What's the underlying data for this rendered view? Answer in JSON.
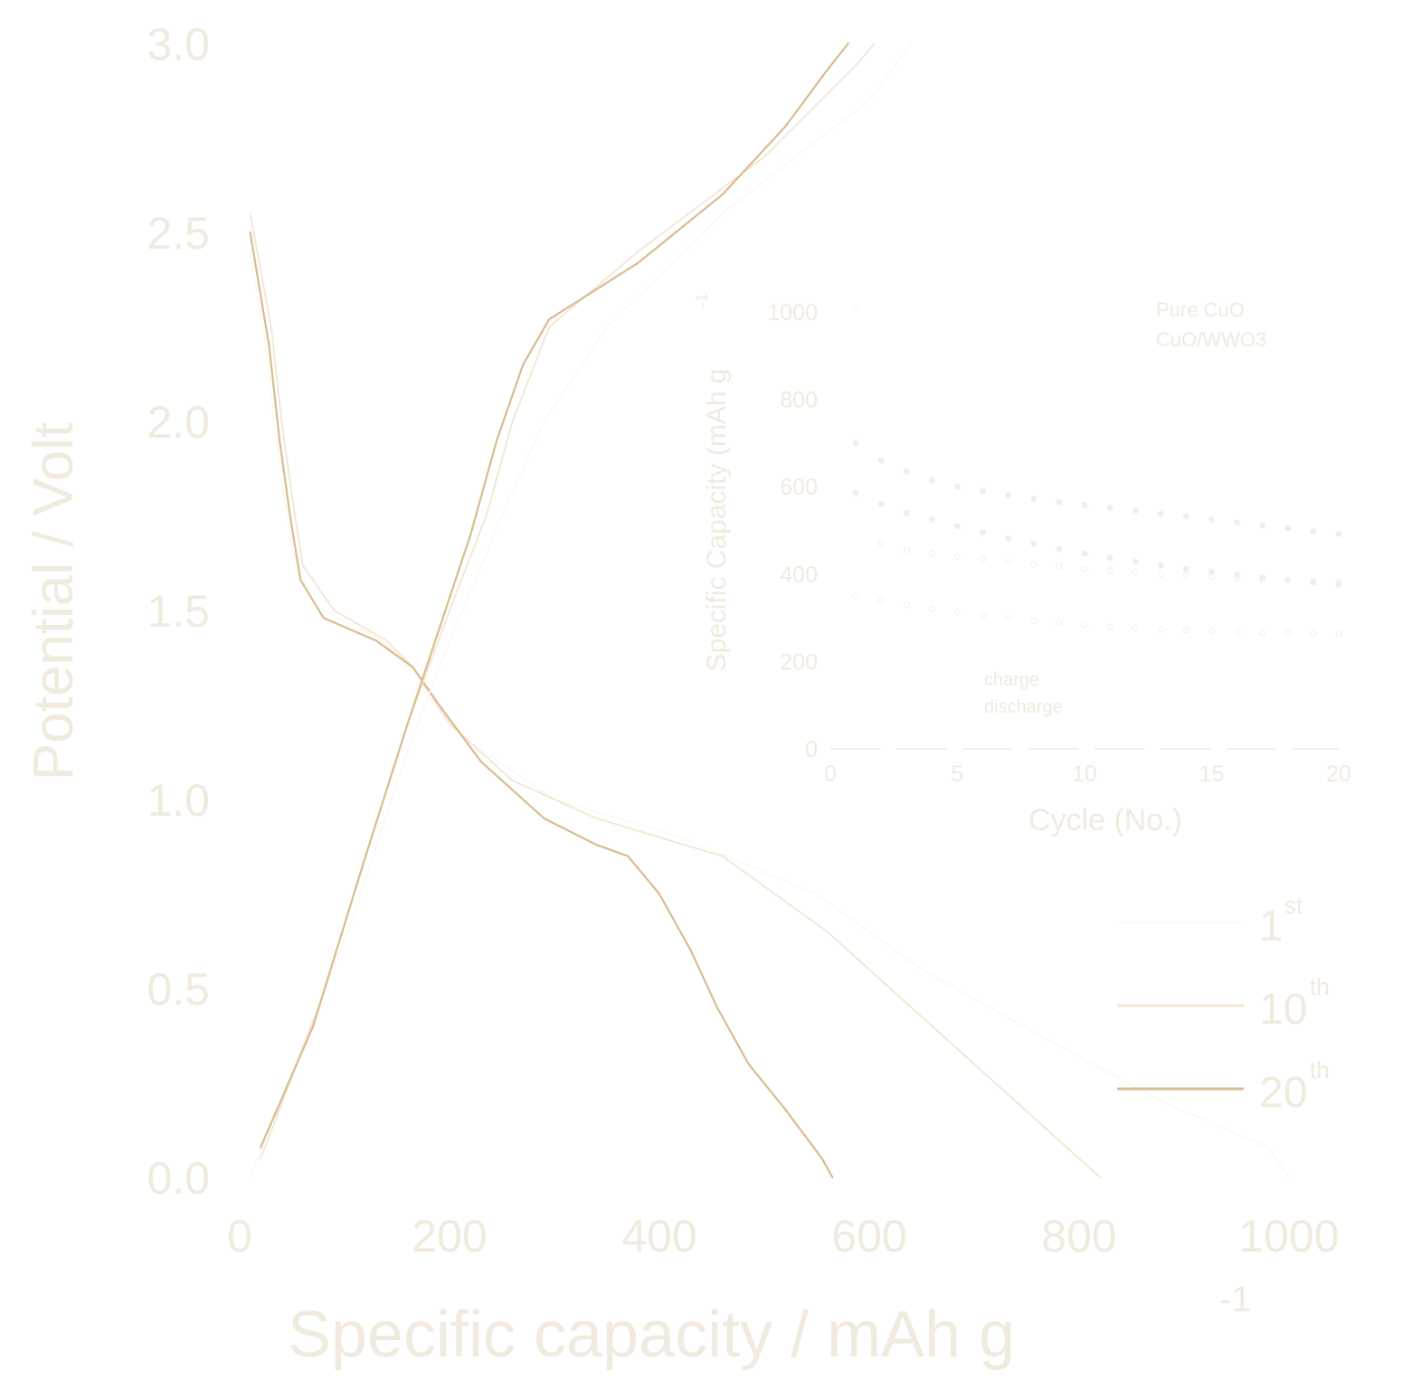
{
  "colors": {
    "text": "#f0eadf",
    "curve_1st": "#fbf8f2",
    "curve_10th": "#f2e6d2",
    "curve_20th": "#d9bc8f",
    "inset": "#f4efe6"
  },
  "chart_data": [
    {
      "type": "line",
      "title": "",
      "xlabel_main": "Specific capacity / mAh g",
      "xlabel_sup": "-1",
      "ylabel": "Potential / Volt",
      "xlim": [
        0,
        1000
      ],
      "ylim": [
        0.0,
        3.0
      ],
      "x_ticks": [
        "0",
        "200",
        "400",
        "600",
        "800",
        "1000"
      ],
      "y_ticks": [
        "0.0",
        "0.5",
        "1.0",
        "1.5",
        "2.0",
        "2.5",
        "3.0"
      ],
      "legend": {
        "placement": "bottom-right",
        "entries": [
          {
            "base": "1",
            "sup": "st"
          },
          {
            "base": "10",
            "sup": "th"
          },
          {
            "base": "20",
            "sup": "th"
          }
        ]
      },
      "series": [
        {
          "branch": "discharge",
          "cycle": "1st",
          "points": [
            [
              10,
              2.45
            ],
            [
              25,
              2.2
            ],
            [
              35,
              1.95
            ],
            [
              45,
              1.75
            ],
            [
              55,
              1.6
            ],
            [
              80,
              1.5
            ],
            [
              130,
              1.43
            ],
            [
              165,
              1.35
            ],
            [
              185,
              1.25
            ],
            [
              220,
              1.15
            ],
            [
              300,
              1.0
            ],
            [
              420,
              0.9
            ],
            [
              550,
              0.75
            ],
            [
              650,
              0.55
            ],
            [
              760,
              0.38
            ],
            [
              880,
              0.2
            ],
            [
              980,
              0.08
            ],
            [
              1000,
              0.0
            ]
          ]
        },
        {
          "branch": "discharge",
          "cycle": "10th",
          "points": [
            [
              10,
              2.55
            ],
            [
              30,
              2.25
            ],
            [
              40,
              2.0
            ],
            [
              50,
              1.8
            ],
            [
              60,
              1.62
            ],
            [
              90,
              1.5
            ],
            [
              140,
              1.42
            ],
            [
              165,
              1.35
            ],
            [
              200,
              1.2
            ],
            [
              260,
              1.05
            ],
            [
              340,
              0.95
            ],
            [
              460,
              0.85
            ],
            [
              560,
              0.65
            ],
            [
              640,
              0.45
            ],
            [
              700,
              0.3
            ],
            [
              760,
              0.15
            ],
            [
              820,
              0.0
            ]
          ]
        },
        {
          "branch": "discharge",
          "cycle": "20th",
          "points": [
            [
              10,
              2.5
            ],
            [
              28,
              2.2
            ],
            [
              38,
              1.95
            ],
            [
              48,
              1.75
            ],
            [
              58,
              1.58
            ],
            [
              80,
              1.48
            ],
            [
              130,
              1.42
            ],
            [
              165,
              1.35
            ],
            [
              190,
              1.25
            ],
            [
              230,
              1.1
            ],
            [
              290,
              0.95
            ],
            [
              340,
              0.88
            ],
            [
              370,
              0.85
            ],
            [
              400,
              0.75
            ],
            [
              430,
              0.6
            ],
            [
              455,
              0.45
            ],
            [
              485,
              0.3
            ],
            [
              520,
              0.18
            ],
            [
              555,
              0.05
            ],
            [
              565,
              0.0
            ]
          ]
        },
        {
          "branch": "charge",
          "cycle": "1st",
          "points": [
            [
              10,
              0.0
            ],
            [
              60,
              0.35
            ],
            [
              110,
              0.7
            ],
            [
              150,
              1.05
            ],
            [
              190,
              1.35
            ],
            [
              220,
              1.55
            ],
            [
              250,
              1.75
            ],
            [
              290,
              2.0
            ],
            [
              350,
              2.25
            ],
            [
              460,
              2.55
            ],
            [
              600,
              2.85
            ],
            [
              640,
              3.0
            ]
          ]
        },
        {
          "branch": "charge",
          "cycle": "10th",
          "points": [
            [
              20,
              0.05
            ],
            [
              75,
              0.45
            ],
            [
              120,
              0.85
            ],
            [
              160,
              1.2
            ],
            [
              200,
              1.5
            ],
            [
              235,
              1.75
            ],
            [
              260,
              2.0
            ],
            [
              295,
              2.25
            ],
            [
              380,
              2.45
            ],
            [
              500,
              2.7
            ],
            [
              590,
              2.95
            ],
            [
              605,
              3.0
            ]
          ]
        },
        {
          "branch": "charge",
          "cycle": "20th",
          "points": [
            [
              20,
              0.08
            ],
            [
              70,
              0.4
            ],
            [
              120,
              0.85
            ],
            [
              160,
              1.2
            ],
            [
              190,
              1.45
            ],
            [
              220,
              1.7
            ],
            [
              245,
              1.95
            ],
            [
              270,
              2.15
            ],
            [
              295,
              2.27
            ],
            [
              380,
              2.42
            ],
            [
              460,
              2.6
            ],
            [
              520,
              2.78
            ],
            [
              560,
              2.93
            ],
            [
              580,
              3.0
            ]
          ]
        }
      ]
    },
    {
      "type": "scatter",
      "title": "",
      "xlabel": "Cycle (No.)",
      "ylabel": "Specific Capacity (mAh g",
      "ylabel_sup": "-1",
      "xlim": [
        0,
        20
      ],
      "ylim": [
        0,
        1000
      ],
      "x_ticks": [
        "0",
        "5",
        "10",
        "15",
        "20"
      ],
      "y_ticks": [
        "0",
        "200",
        "400",
        "600",
        "800",
        "1000"
      ],
      "legend_material": {
        "placement": "top-right",
        "entries": [
          "Pure CuO",
          "CuO/WWO3"
        ]
      },
      "legend_branch": {
        "placement": "bottom-left",
        "entries": [
          "charge",
          "discharge"
        ]
      },
      "series": [
        {
          "name": "Pure CuO",
          "role": "charge",
          "x": [
            1,
            2,
            3,
            4,
            5,
            6,
            7,
            8,
            9,
            10,
            11,
            12,
            13,
            14,
            15,
            16,
            17,
            18,
            19,
            20
          ],
          "y": [
            585,
            560,
            540,
            525,
            510,
            495,
            482,
            470,
            458,
            447,
            437,
            428,
            420,
            412,
            405,
            398,
            392,
            386,
            381,
            376
          ]
        },
        {
          "name": "Pure CuO",
          "role": "discharge",
          "x": [
            1,
            2,
            3,
            4,
            5,
            6,
            7,
            8,
            9,
            10,
            11,
            12,
            13,
            14,
            15,
            16,
            17,
            18,
            19,
            20
          ],
          "y": [
            350,
            340,
            330,
            320,
            312,
            305,
            299,
            293,
            288,
            284,
            280,
            277,
            274,
            272,
            270,
            268,
            266,
            265,
            264,
            263
          ]
        },
        {
          "name": "CuO/WWO3",
          "role": "charge",
          "x": [
            1,
            2,
            3,
            4,
            5,
            6,
            7,
            8,
            9,
            10,
            11,
            12,
            13,
            14,
            15,
            16,
            17,
            18,
            19,
            20
          ],
          "y": [
            700,
            660,
            635,
            615,
            600,
            590,
            580,
            572,
            565,
            558,
            552,
            545,
            538,
            532,
            525,
            518,
            512,
            505,
            498,
            492
          ]
        },
        {
          "name": "CuO/WWO3",
          "role": "discharge",
          "x": [
            1,
            2,
            3,
            4,
            5,
            6,
            7,
            8,
            9,
            10,
            11,
            12,
            13,
            14,
            15,
            16,
            17,
            18,
            19,
            20
          ],
          "y": [
            1010,
            470,
            455,
            447,
            440,
            434,
            428,
            422,
            417,
            412,
            408,
            404,
            400,
            397,
            394,
            391,
            388,
            386,
            384,
            382
          ]
        }
      ]
    }
  ]
}
